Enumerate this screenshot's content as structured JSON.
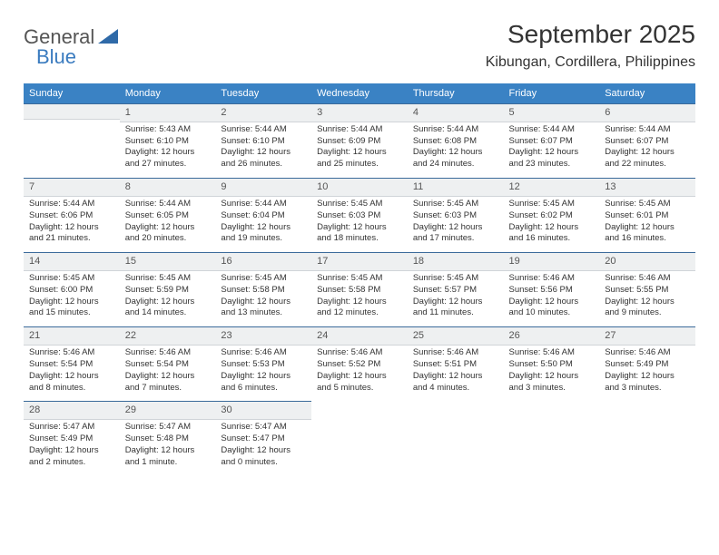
{
  "logo": {
    "text1": "General",
    "text2": "Blue"
  },
  "title": "September 2025",
  "location": "Kibungan, Cordillera, Philippines",
  "dow": [
    "Sunday",
    "Monday",
    "Tuesday",
    "Wednesday",
    "Thursday",
    "Friday",
    "Saturday"
  ],
  "colors": {
    "header_bg": "#3a82c4",
    "daynum_bg": "#eef0f1",
    "row_border": "#3a6a9a",
    "logo_blue": "#3a7bbf"
  },
  "weeks": [
    [
      null,
      {
        "n": "1",
        "sr": "Sunrise: 5:43 AM",
        "ss": "Sunset: 6:10 PM",
        "d1": "Daylight: 12 hours",
        "d2": "and 27 minutes."
      },
      {
        "n": "2",
        "sr": "Sunrise: 5:44 AM",
        "ss": "Sunset: 6:10 PM",
        "d1": "Daylight: 12 hours",
        "d2": "and 26 minutes."
      },
      {
        "n": "3",
        "sr": "Sunrise: 5:44 AM",
        "ss": "Sunset: 6:09 PM",
        "d1": "Daylight: 12 hours",
        "d2": "and 25 minutes."
      },
      {
        "n": "4",
        "sr": "Sunrise: 5:44 AM",
        "ss": "Sunset: 6:08 PM",
        "d1": "Daylight: 12 hours",
        "d2": "and 24 minutes."
      },
      {
        "n": "5",
        "sr": "Sunrise: 5:44 AM",
        "ss": "Sunset: 6:07 PM",
        "d1": "Daylight: 12 hours",
        "d2": "and 23 minutes."
      },
      {
        "n": "6",
        "sr": "Sunrise: 5:44 AM",
        "ss": "Sunset: 6:07 PM",
        "d1": "Daylight: 12 hours",
        "d2": "and 22 minutes."
      }
    ],
    [
      {
        "n": "7",
        "sr": "Sunrise: 5:44 AM",
        "ss": "Sunset: 6:06 PM",
        "d1": "Daylight: 12 hours",
        "d2": "and 21 minutes."
      },
      {
        "n": "8",
        "sr": "Sunrise: 5:44 AM",
        "ss": "Sunset: 6:05 PM",
        "d1": "Daylight: 12 hours",
        "d2": "and 20 minutes."
      },
      {
        "n": "9",
        "sr": "Sunrise: 5:44 AM",
        "ss": "Sunset: 6:04 PM",
        "d1": "Daylight: 12 hours",
        "d2": "and 19 minutes."
      },
      {
        "n": "10",
        "sr": "Sunrise: 5:45 AM",
        "ss": "Sunset: 6:03 PM",
        "d1": "Daylight: 12 hours",
        "d2": "and 18 minutes."
      },
      {
        "n": "11",
        "sr": "Sunrise: 5:45 AM",
        "ss": "Sunset: 6:03 PM",
        "d1": "Daylight: 12 hours",
        "d2": "and 17 minutes."
      },
      {
        "n": "12",
        "sr": "Sunrise: 5:45 AM",
        "ss": "Sunset: 6:02 PM",
        "d1": "Daylight: 12 hours",
        "d2": "and 16 minutes."
      },
      {
        "n": "13",
        "sr": "Sunrise: 5:45 AM",
        "ss": "Sunset: 6:01 PM",
        "d1": "Daylight: 12 hours",
        "d2": "and 16 minutes."
      }
    ],
    [
      {
        "n": "14",
        "sr": "Sunrise: 5:45 AM",
        "ss": "Sunset: 6:00 PM",
        "d1": "Daylight: 12 hours",
        "d2": "and 15 minutes."
      },
      {
        "n": "15",
        "sr": "Sunrise: 5:45 AM",
        "ss": "Sunset: 5:59 PM",
        "d1": "Daylight: 12 hours",
        "d2": "and 14 minutes."
      },
      {
        "n": "16",
        "sr": "Sunrise: 5:45 AM",
        "ss": "Sunset: 5:58 PM",
        "d1": "Daylight: 12 hours",
        "d2": "and 13 minutes."
      },
      {
        "n": "17",
        "sr": "Sunrise: 5:45 AM",
        "ss": "Sunset: 5:58 PM",
        "d1": "Daylight: 12 hours",
        "d2": "and 12 minutes."
      },
      {
        "n": "18",
        "sr": "Sunrise: 5:45 AM",
        "ss": "Sunset: 5:57 PM",
        "d1": "Daylight: 12 hours",
        "d2": "and 11 minutes."
      },
      {
        "n": "19",
        "sr": "Sunrise: 5:46 AM",
        "ss": "Sunset: 5:56 PM",
        "d1": "Daylight: 12 hours",
        "d2": "and 10 minutes."
      },
      {
        "n": "20",
        "sr": "Sunrise: 5:46 AM",
        "ss": "Sunset: 5:55 PM",
        "d1": "Daylight: 12 hours",
        "d2": "and 9 minutes."
      }
    ],
    [
      {
        "n": "21",
        "sr": "Sunrise: 5:46 AM",
        "ss": "Sunset: 5:54 PM",
        "d1": "Daylight: 12 hours",
        "d2": "and 8 minutes."
      },
      {
        "n": "22",
        "sr": "Sunrise: 5:46 AM",
        "ss": "Sunset: 5:54 PM",
        "d1": "Daylight: 12 hours",
        "d2": "and 7 minutes."
      },
      {
        "n": "23",
        "sr": "Sunrise: 5:46 AM",
        "ss": "Sunset: 5:53 PM",
        "d1": "Daylight: 12 hours",
        "d2": "and 6 minutes."
      },
      {
        "n": "24",
        "sr": "Sunrise: 5:46 AM",
        "ss": "Sunset: 5:52 PM",
        "d1": "Daylight: 12 hours",
        "d2": "and 5 minutes."
      },
      {
        "n": "25",
        "sr": "Sunrise: 5:46 AM",
        "ss": "Sunset: 5:51 PM",
        "d1": "Daylight: 12 hours",
        "d2": "and 4 minutes."
      },
      {
        "n": "26",
        "sr": "Sunrise: 5:46 AM",
        "ss": "Sunset: 5:50 PM",
        "d1": "Daylight: 12 hours",
        "d2": "and 3 minutes."
      },
      {
        "n": "27",
        "sr": "Sunrise: 5:46 AM",
        "ss": "Sunset: 5:49 PM",
        "d1": "Daylight: 12 hours",
        "d2": "and 3 minutes."
      }
    ],
    [
      {
        "n": "28",
        "sr": "Sunrise: 5:47 AM",
        "ss": "Sunset: 5:49 PM",
        "d1": "Daylight: 12 hours",
        "d2": "and 2 minutes."
      },
      {
        "n": "29",
        "sr": "Sunrise: 5:47 AM",
        "ss": "Sunset: 5:48 PM",
        "d1": "Daylight: 12 hours",
        "d2": "and 1 minute."
      },
      {
        "n": "30",
        "sr": "Sunrise: 5:47 AM",
        "ss": "Sunset: 5:47 PM",
        "d1": "Daylight: 12 hours",
        "d2": "and 0 minutes."
      },
      null,
      null,
      null,
      null
    ]
  ]
}
